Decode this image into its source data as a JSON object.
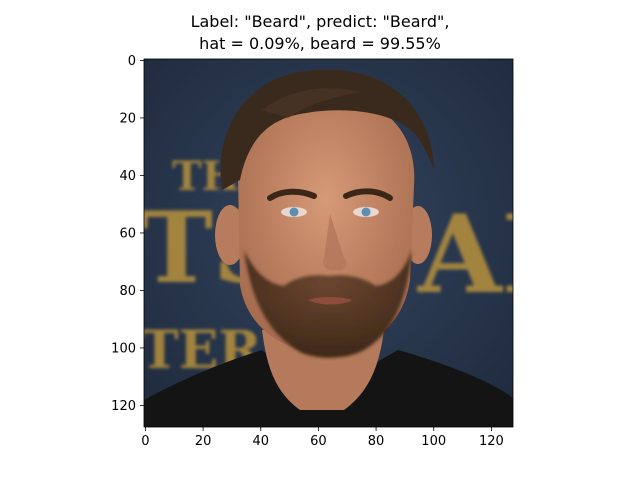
{
  "figure": {
    "title_line_1": "Label: \"Beard\", predict: \"Beard\",",
    "title_line_2": "hat = 0.09%, beard = 99.55%"
  },
  "image_axes": {
    "x_ticks": [
      "0",
      "20",
      "40",
      "60",
      "80",
      "100",
      "120"
    ],
    "y_ticks": [
      "0",
      "20",
      "40",
      "60",
      "80",
      "100",
      "120"
    ],
    "x_tick_values": [
      0,
      20,
      40,
      60,
      80,
      100,
      120
    ],
    "y_tick_values": [
      0,
      20,
      40,
      60,
      80,
      100,
      120
    ],
    "pixel_extent": [
      128,
      128
    ],
    "content": "close-up portrait photo of a bearded man with short swept-back hair in front of a dark blue backdrop with large gold lettering"
  },
  "colors": {
    "background": "#2b3a52",
    "gold_text": "#b8923e",
    "hair": "#3a2a1e",
    "beard": "#5a3a24",
    "skin": "#c98f6e",
    "shirt": "#141414"
  }
}
